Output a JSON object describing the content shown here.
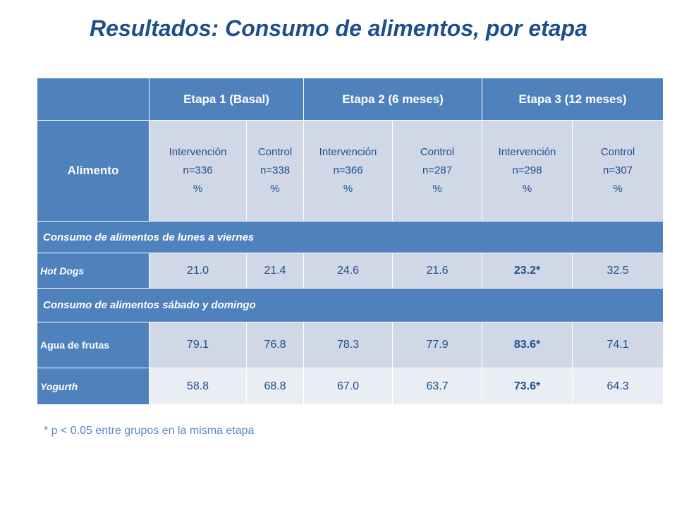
{
  "title": "Resultados: Consumo de alimentos, por etapa",
  "header": {
    "stages": [
      "Etapa 1 (Basal)",
      "Etapa 2 (6 meses)",
      "Etapa 3 (12 meses)"
    ],
    "food_label": "Alimento",
    "groups": [
      {
        "name": "Intervención",
        "n": "n=336",
        "unit": "%"
      },
      {
        "name": "Control",
        "n": "n=338",
        "unit": "%"
      },
      {
        "name": "Intervención",
        "n": "n=366",
        "unit": "%"
      },
      {
        "name": "Control",
        "n": "n=287",
        "unit": "%"
      },
      {
        "name": "Intervención",
        "n": "n=298",
        "unit": "%"
      },
      {
        "name": "Control",
        "n": "n=307",
        "unit": "%"
      }
    ]
  },
  "sections": [
    {
      "label": "Consumo de alimentos de lunes a viernes",
      "rows": [
        {
          "food": "Hot Dogs",
          "values": [
            "21.0",
            "21.4",
            "24.6",
            "21.6",
            "23.2*",
            "32.5"
          ]
        }
      ]
    },
    {
      "label": "Consumo de alimentos sábado y domingo",
      "rows": [
        {
          "food": "Agua de frutas",
          "values": [
            "79.1",
            "76.8",
            "78.3",
            "77.9",
            "83.6*",
            "74.1"
          ]
        },
        {
          "food": "Yogurth",
          "values": [
            "58.8",
            "68.8",
            "67.0",
            "63.7",
            "73.6*",
            "64.3"
          ]
        }
      ]
    }
  ],
  "footnote": "* p < 0.05 entre grupos en la misma etapa"
}
